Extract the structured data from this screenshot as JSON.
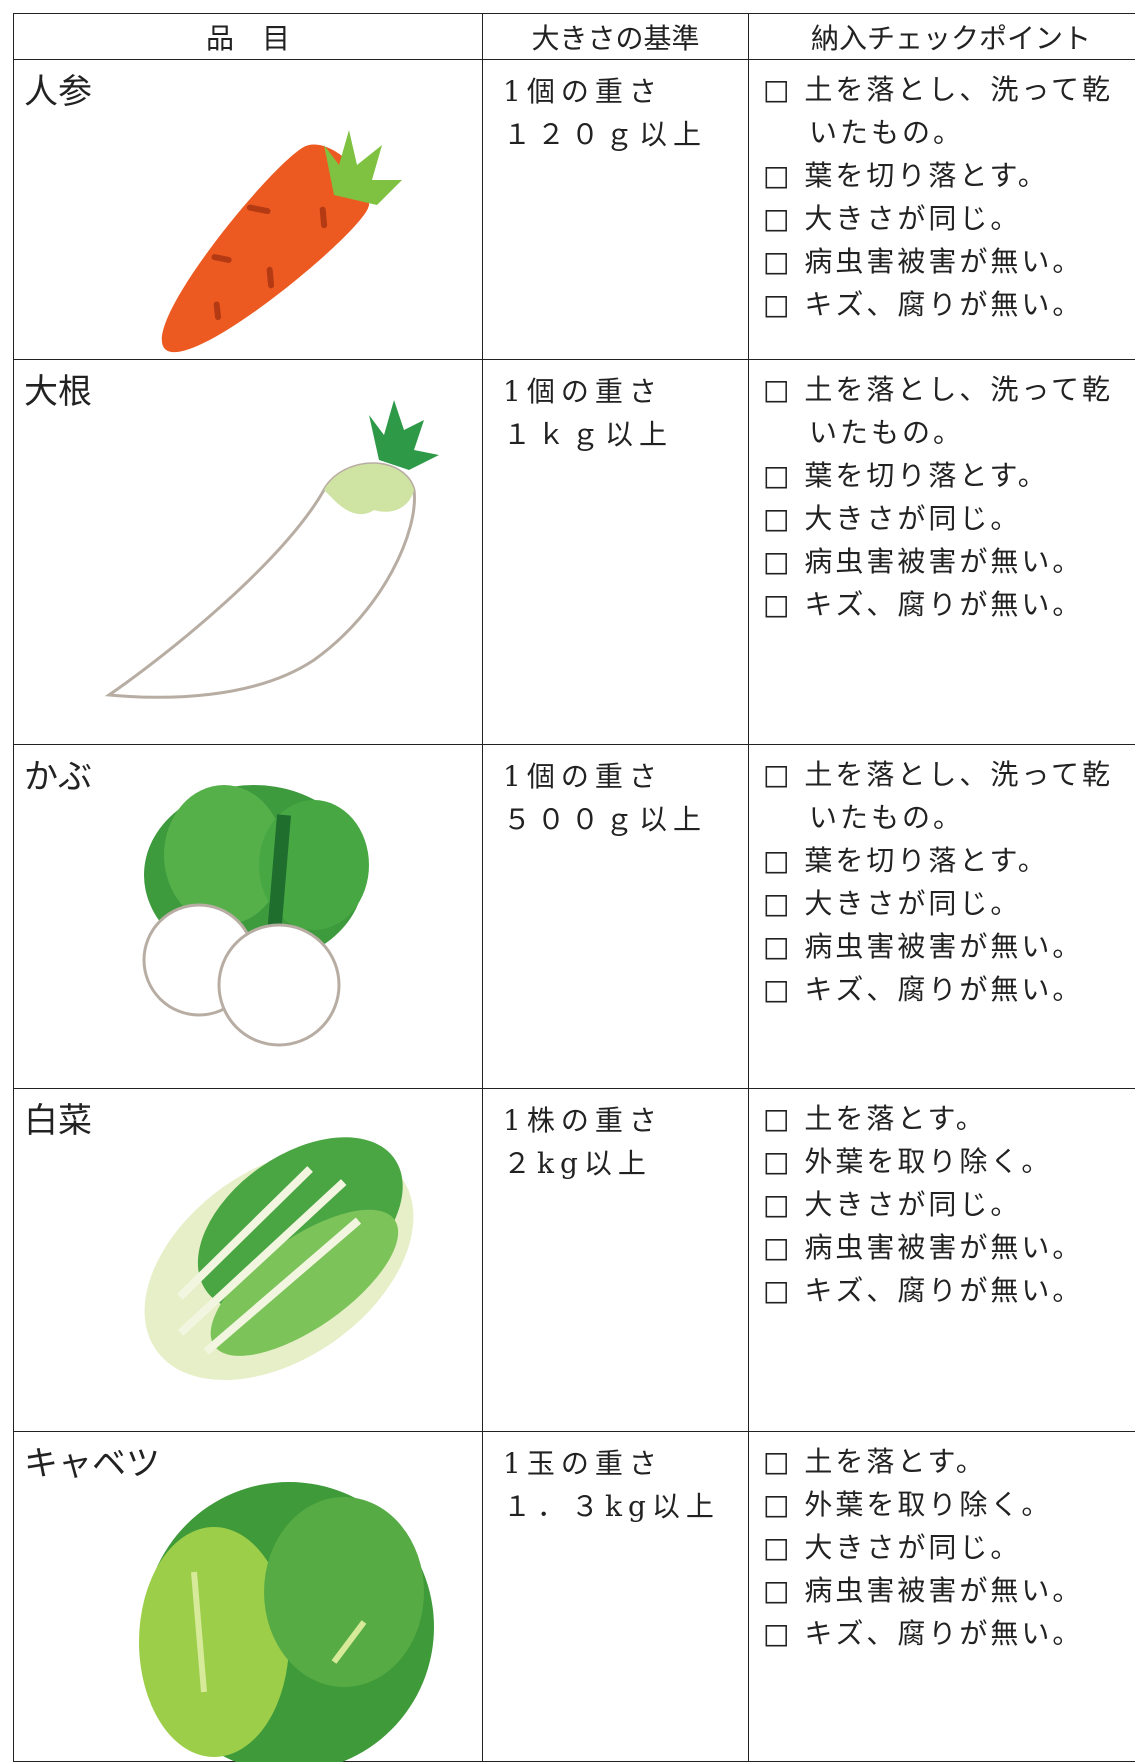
{
  "table": {
    "header": [
      "品　目",
      "大きさの基準",
      "納入チェックポイント"
    ],
    "rows": [
      {
        "name": "人参",
        "criteria": [
          "1個の重さ",
          "１２０ｇ以上"
        ],
        "checks": [
          "□ 土を落とし、洗って乾いたもの。",
          "□ 葉を切り落とす。",
          "□ 大きさが同じ。",
          "□ 病虫害被害が無い。",
          "□ キズ、腐りが無い。"
        ]
      },
      {
        "name": "大根",
        "criteria": [
          "1個の重さ",
          "１ｋｇ以上"
        ],
        "checks": [
          "□ 土を落とし、洗って乾いたもの。",
          "□ 葉を切り落とす。",
          "□ 大きさが同じ。",
          "□ 病虫害被害が無い。",
          "□ キズ、腐りが無い。"
        ]
      },
      {
        "name": "かぶ",
        "criteria": [
          "1個の重さ",
          "５００ｇ以上"
        ],
        "checks": [
          "□ 土を落とし、洗って乾いたもの。",
          "□ 葉を切り落とす。",
          "□ 大きさが同じ。",
          "□ 病虫害被害が無い。",
          "□ キズ、腐りが無い。"
        ]
      },
      {
        "name": "白菜",
        "criteria": [
          "1株の重さ",
          "２kg以上"
        ],
        "checks": [
          "□ 土を落とす。",
          "□ 外葉を取り除く。",
          "□ 大きさが同じ。",
          "□ 病虫害被害が無い。",
          "□ キズ、腐りが無い。"
        ]
      },
      {
        "name": "キャベツ",
        "criteria": [
          "1玉の重さ",
          "１．３kg以上"
        ],
        "checks": [
          "□ 土を落とす。",
          "□ 外葉を取り除く。",
          "□ 大きさが同じ。",
          "□ 病虫害被害が無い。",
          "□ キズ、腐りが無い。"
        ]
      }
    ]
  }
}
